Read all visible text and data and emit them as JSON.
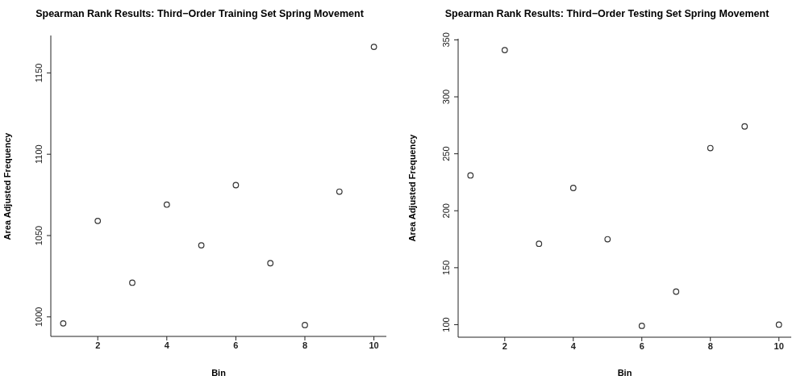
{
  "chart_data": [
    {
      "type": "scatter",
      "title": "Spearman Rank Results: Third−Order Training Set Spring Movement",
      "xlabel": "Bin",
      "ylabel": "Area Adjusted Frequency",
      "x": [
        1,
        2,
        3,
        4,
        5,
        6,
        7,
        8,
        9,
        10
      ],
      "series": [
        {
          "color": "#333333",
          "values": [
            996,
            1059,
            1021,
            1069,
            1044,
            1081,
            1033,
            995,
            1077,
            1166
          ]
        }
      ],
      "xlim": [
        0.64,
        10.36
      ],
      "xticks": [
        2,
        4,
        6,
        8,
        10
      ],
      "ylim": [
        988,
        1173
      ],
      "yticks": [
        1000,
        1050,
        1100,
        1150
      ],
      "grid": false,
      "legend": false,
      "marker": "circle"
    },
    {
      "type": "scatter",
      "title": "Spearman Rank Results: Third−Order Testing Set Spring Movement",
      "xlabel": "Bin",
      "ylabel": "Area Adjusted Frequency",
      "x": [
        1,
        2,
        3,
        4,
        5,
        6,
        7,
        8,
        9,
        10
      ],
      "series": [
        {
          "color": "#333333",
          "values": [
            231,
            341,
            171,
            220,
            175,
            99,
            129,
            255,
            274,
            100
          ]
        }
      ],
      "xlim": [
        0.64,
        10.36
      ],
      "xticks": [
        2,
        4,
        6,
        8,
        10
      ],
      "ylim": [
        89,
        351
      ],
      "yticks": [
        100,
        150,
        200,
        250,
        300,
        350
      ],
      "grid": false,
      "legend": false,
      "marker": "circle"
    }
  ]
}
